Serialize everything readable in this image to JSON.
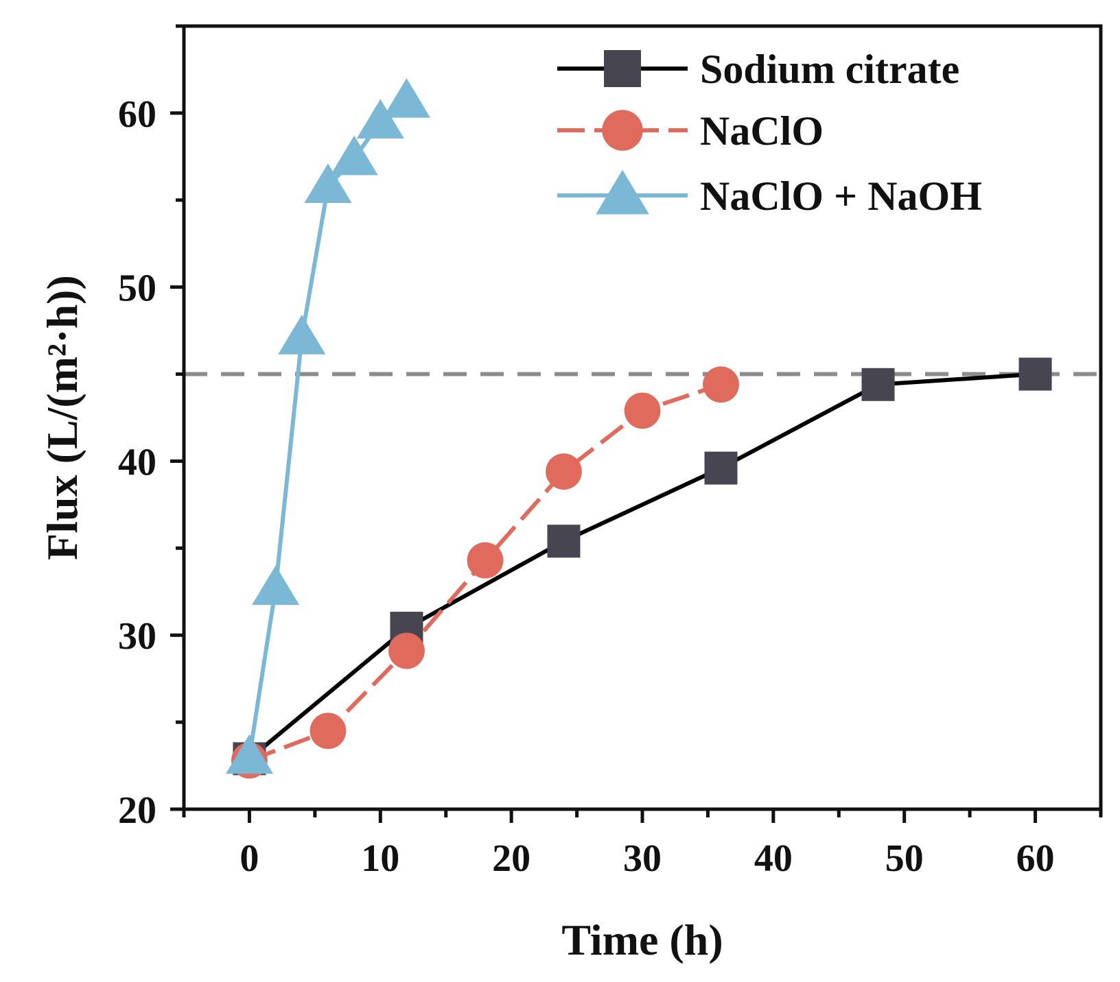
{
  "chart_data": {
    "type": "line",
    "xlabel": "Time (h)",
    "ylabel": "Flux (L/(m²·h))",
    "xlim": [
      -5,
      65
    ],
    "ylim": [
      20,
      65
    ],
    "xticks": [
      0,
      10,
      20,
      30,
      40,
      50,
      60
    ],
    "yticks": [
      20,
      30,
      40,
      50,
      60
    ],
    "legend_position": "top-right",
    "reference_line": {
      "y": 45,
      "style": "dashed",
      "color": "#8c8c8c"
    },
    "series": [
      {
        "name": "Sodium citrate",
        "marker": "square",
        "line_style": "solid",
        "color": "#47454f",
        "line_color": "#000000",
        "x": [
          0,
          12,
          24,
          36,
          48,
          60
        ],
        "y": [
          22.9,
          30.4,
          35.4,
          39.6,
          44.4,
          45.0
        ]
      },
      {
        "name": "NaClO",
        "marker": "circle",
        "line_style": "dashed",
        "color": "#e06a5c",
        "line_color": "#e06a5c",
        "x": [
          0,
          6,
          12,
          18,
          24,
          30,
          36
        ],
        "y": [
          22.8,
          24.5,
          29.1,
          34.3,
          39.4,
          42.9,
          44.4
        ]
      },
      {
        "name": "NaClO + NaOH",
        "marker": "triangle",
        "line_style": "solid",
        "color": "#7ab8d6",
        "line_color": "#7ab8d6",
        "x": [
          0,
          2,
          4,
          6,
          8,
          10,
          12
        ],
        "y": [
          23.0,
          32.7,
          47.1,
          55.8,
          57.4,
          59.5,
          60.7
        ]
      }
    ]
  }
}
